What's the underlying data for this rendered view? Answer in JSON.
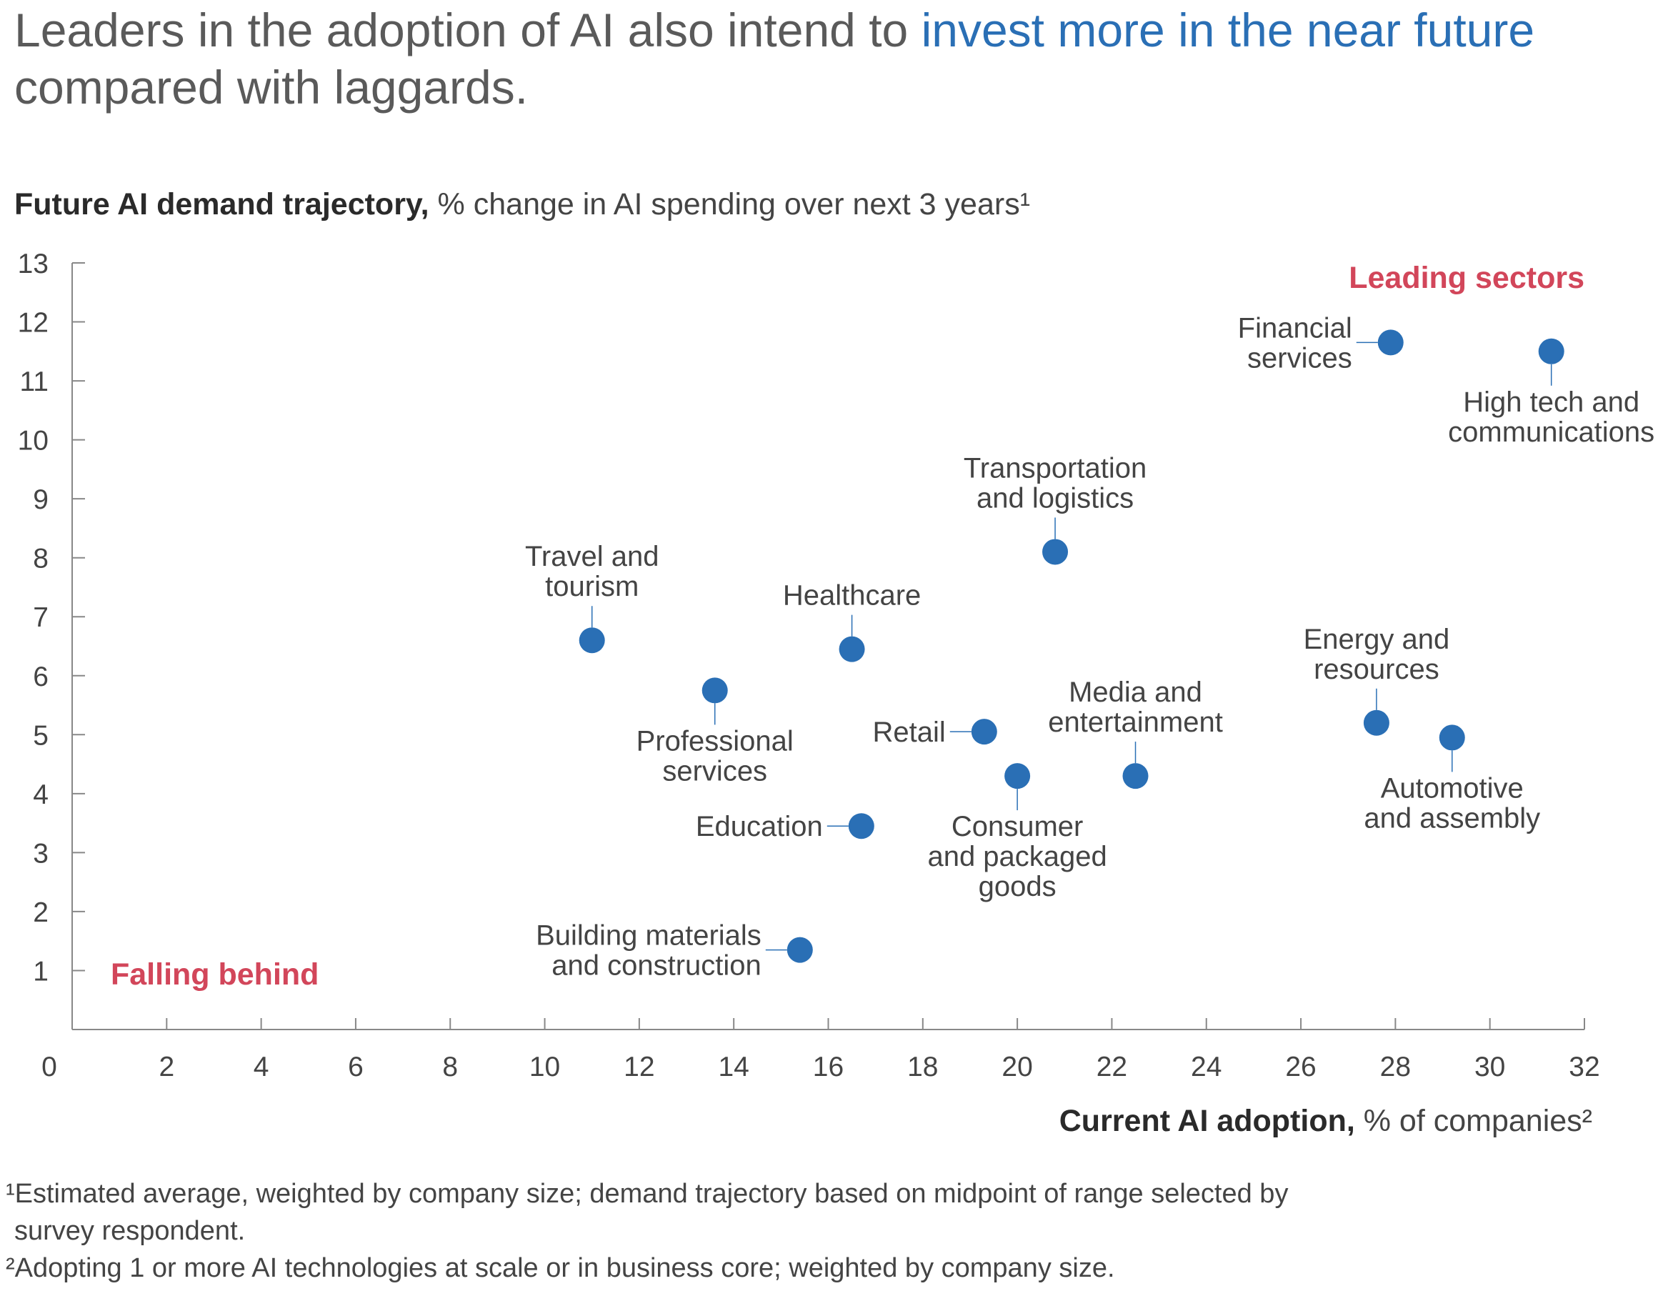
{
  "title": {
    "part1": "Leaders in the adoption of AI also intend to ",
    "highlight": "invest more in the near future",
    "part2": " compared with laggards."
  },
  "chart_data": {
    "type": "scatter",
    "y_label_bold": "Future AI demand trajectory,",
    "y_label_rest": " % change in AI spending over next 3 years¹",
    "x_label_bold": "Current AI adoption,",
    "x_label_rest": " % of companies²",
    "xlim": [
      0,
      32
    ],
    "ylim": [
      0,
      13
    ],
    "x_ticks": [
      0,
      2,
      4,
      6,
      8,
      10,
      12,
      14,
      16,
      18,
      20,
      22,
      24,
      26,
      28,
      30,
      32
    ],
    "y_ticks": [
      1,
      2,
      3,
      4,
      5,
      6,
      7,
      8,
      9,
      10,
      11,
      12,
      13
    ],
    "quadrant_labels": {
      "top_right": "Leading sectors",
      "bottom_left": "Falling behind"
    },
    "points": [
      {
        "label": [
          "Financial",
          "services"
        ],
        "x": 27.9,
        "y": 11.65,
        "label_pos": "left"
      },
      {
        "label": [
          "High tech and",
          "communications"
        ],
        "x": 31.3,
        "y": 11.5,
        "label_pos": "below"
      },
      {
        "label": [
          "Transportation",
          "and logistics"
        ],
        "x": 20.8,
        "y": 8.1,
        "label_pos": "above"
      },
      {
        "label": [
          "Travel and",
          "tourism"
        ],
        "x": 11.0,
        "y": 6.6,
        "label_pos": "above"
      },
      {
        "label": [
          "Healthcare"
        ],
        "x": 16.5,
        "y": 6.45,
        "label_pos": "above"
      },
      {
        "label": [
          "Professional",
          "services"
        ],
        "x": 13.6,
        "y": 5.75,
        "label_pos": "below"
      },
      {
        "label": [
          "Energy and",
          "resources"
        ],
        "x": 27.6,
        "y": 5.2,
        "label_pos": "above"
      },
      {
        "label": [
          "Retail"
        ],
        "x": 19.3,
        "y": 5.05,
        "label_pos": "left"
      },
      {
        "label": [
          "Automotive",
          "and assembly"
        ],
        "x": 29.2,
        "y": 4.95,
        "label_pos": "below"
      },
      {
        "label": [
          "Consumer",
          "and packaged",
          "goods"
        ],
        "x": 20.0,
        "y": 4.3,
        "label_pos": "below"
      },
      {
        "label": [
          "Media and",
          "entertainment"
        ],
        "x": 22.5,
        "y": 4.3,
        "label_pos": "above"
      },
      {
        "label": [
          "Education"
        ],
        "x": 16.7,
        "y": 3.45,
        "label_pos": "left"
      },
      {
        "label": [
          "Building materials",
          "and construction"
        ],
        "x": 15.4,
        "y": 1.35,
        "label_pos": "left"
      }
    ],
    "colors": {
      "point": "#2a6fb5",
      "axis": "#888888",
      "quadrant": "#d2465a",
      "text": "#444444"
    }
  },
  "footnotes": {
    "fn1_line1": "¹Estimated average, weighted by company size; demand trajectory based on midpoint of range selected by",
    "fn1_line2": "survey respondent.",
    "fn2": "²Adopting 1 or more AI technologies at scale or in business core; weighted by company size."
  }
}
